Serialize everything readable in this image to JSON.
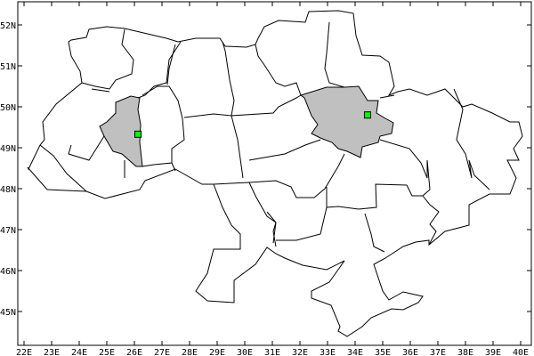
{
  "map": {
    "projection": "equirectangular",
    "lon_range": [
      21.77,
      40.39
    ],
    "lat_range": [
      44.17,
      52.57
    ],
    "x_tick_labels": [
      "22E",
      "23E",
      "24E",
      "25E",
      "26E",
      "27E",
      "28E",
      "29E",
      "30E",
      "31E",
      "32E",
      "33E",
      "34E",
      "35E",
      "36E",
      "37E",
      "38E",
      "39E",
      "40E"
    ],
    "x_tick_values": [
      22,
      23,
      24,
      25,
      26,
      27,
      28,
      29,
      30,
      31,
      32,
      33,
      34,
      35,
      36,
      37,
      38,
      39,
      40
    ],
    "y_tick_labels": [
      "45N",
      "46N",
      "47N",
      "48N",
      "49N",
      "50N",
      "51N",
      "52N"
    ],
    "y_tick_values": [
      45,
      46,
      47,
      48,
      49,
      50,
      51,
      52
    ],
    "colors": {
      "border": "#000000",
      "highlight_fill": "#c0c0c0",
      "marker_fill": "#00ff00",
      "marker_stroke": "#000000",
      "background": "#ffffff"
    },
    "markers": [
      {
        "lon": 26.13,
        "lat": 49.33
      },
      {
        "lon": 34.45,
        "lat": 49.8
      }
    ],
    "highlighted_regions_count": 2
  }
}
